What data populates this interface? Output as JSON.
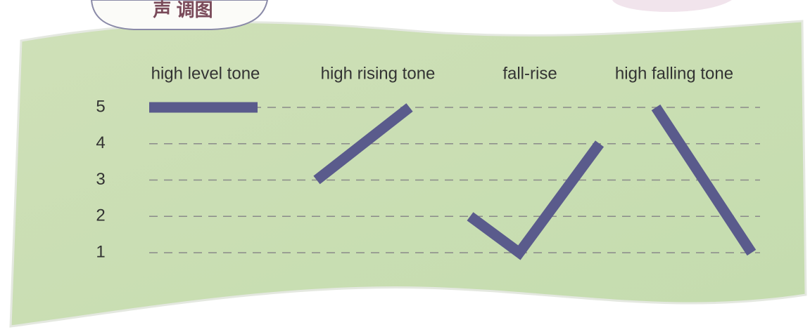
{
  "title": "声 调图",
  "levels": [
    5,
    4,
    3,
    2,
    1
  ],
  "tones": [
    {
      "name": "high level tone",
      "contour": [
        5,
        5
      ]
    },
    {
      "name": "high rising tone",
      "contour": [
        3,
        5
      ]
    },
    {
      "name": "fall-rise",
      "contour": [
        2,
        1,
        4
      ]
    },
    {
      "name": "high falling tone",
      "contour": [
        5,
        1
      ]
    }
  ]
}
